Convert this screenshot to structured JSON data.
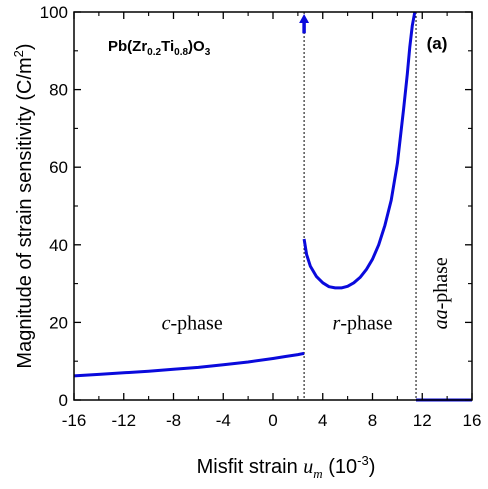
{
  "chart_data": {
    "type": "line",
    "title": "",
    "panel_label": "(a)",
    "material_label": {
      "prefix": "Pb(Zr",
      "sub1": "0.2",
      "mid": "Ti",
      "sub2": "0.8",
      "suffix": ")O",
      "sub3": "3"
    },
    "xlabel": {
      "prefix": "Misfit strain ",
      "var": "u",
      "var_sub": "m",
      "unit_open": " (10",
      "unit_exp": "-3",
      "unit_close": ")"
    },
    "ylabel": {
      "text": "Magnitude of strain sensitivity (C/m",
      "exp": "2",
      "close": ")"
    },
    "xlim": [
      -16,
      16
    ],
    "ylim": [
      0,
      100
    ],
    "xticks": [
      -16,
      -12,
      -8,
      -4,
      0,
      4,
      8,
      12,
      16
    ],
    "xtick_labels": [
      "-16",
      "-12",
      "-8",
      "-4",
      "0",
      "4",
      "8",
      "12",
      "16"
    ],
    "yticks": [
      0,
      20,
      40,
      60,
      80,
      100
    ],
    "ytick_labels": [
      "0",
      "20",
      "40",
      "60",
      "80",
      "100"
    ],
    "grid": false,
    "series_color": "#0a0adc",
    "series": [
      {
        "phase": "c",
        "x": [
          -16,
          -14,
          -12,
          -10,
          -8,
          -6,
          -4,
          -2,
          0,
          1,
          2,
          2.5
        ],
        "y": [
          6.2,
          6.6,
          7.0,
          7.4,
          7.9,
          8.4,
          9.1,
          9.8,
          10.7,
          11.2,
          11.7,
          12.0
        ]
      },
      {
        "phase": "r",
        "x": [
          2.5,
          2.7,
          3.0,
          3.5,
          4.0,
          4.5,
          5.0,
          5.5,
          6.0,
          6.5,
          7.0,
          7.5,
          8.0,
          8.5,
          9.0,
          9.5,
          10.0,
          10.5,
          10.8,
          11.0,
          11.2,
          11.4
        ],
        "y": [
          41.5,
          37.5,
          34.5,
          31.8,
          30.2,
          29.2,
          28.9,
          28.9,
          29.3,
          30.2,
          31.6,
          33.6,
          36.3,
          40.0,
          45.0,
          51.5,
          61.0,
          75.0,
          84.0,
          91.0,
          96.5,
          100
        ]
      },
      {
        "phase": "aa",
        "x": [
          11.5,
          16
        ],
        "y": [
          0,
          0
        ]
      }
    ],
    "phase_boundaries": [
      2.5,
      11.5
    ],
    "arrow": {
      "x": 2.5,
      "y_from": 94.5,
      "y_to": 99.5
    },
    "phase_labels": [
      {
        "italic": "c",
        "text": "-phase",
        "x": -6.5,
        "y": 18.2,
        "orientation": "horizontal"
      },
      {
        "italic": "r",
        "text": "-phase",
        "x": 7.2,
        "y": 18.2,
        "orientation": "horizontal"
      },
      {
        "italic": "aa",
        "text": "-phase",
        "x": 14.0,
        "y": 27.5,
        "orientation": "vertical"
      }
    ]
  }
}
